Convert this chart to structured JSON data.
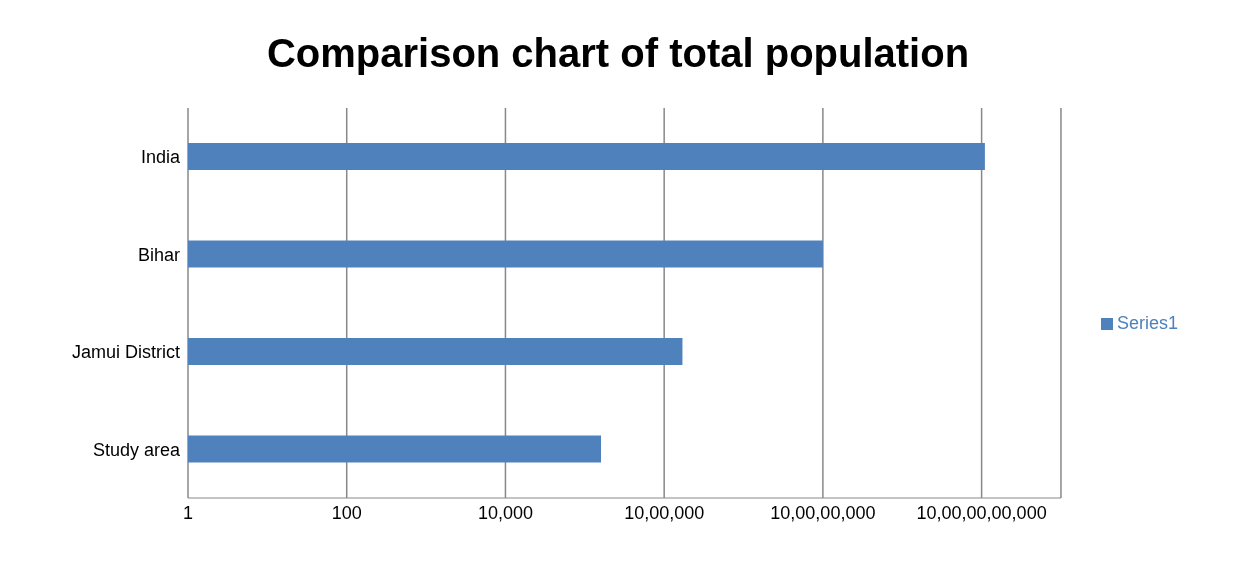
{
  "chart_data": {
    "type": "bar",
    "title": "Comparison chart of total population",
    "orientation": "horizontal",
    "log": "x",
    "categories": [
      "India",
      "Bihar",
      "Jamui District",
      "Study area"
    ],
    "series": [
      {
        "name": "Series1",
        "color": "#4f81bd",
        "values": [
          11000000000,
          100000000,
          1700000,
          160000
        ]
      }
    ],
    "xlim": [
      1,
      100000000000
    ],
    "xticks": [
      {
        "value": 1,
        "label": "1"
      },
      {
        "value": 100,
        "label": "100"
      },
      {
        "value": 10000,
        "label": "10,000"
      },
      {
        "value": 1000000,
        "label": "10,00,000"
      },
      {
        "value": 100000000,
        "label": "10,00,00,000"
      },
      {
        "value": 10000000000,
        "label": "10,00,00,00,000"
      }
    ],
    "grid": "x",
    "legend": "right"
  }
}
